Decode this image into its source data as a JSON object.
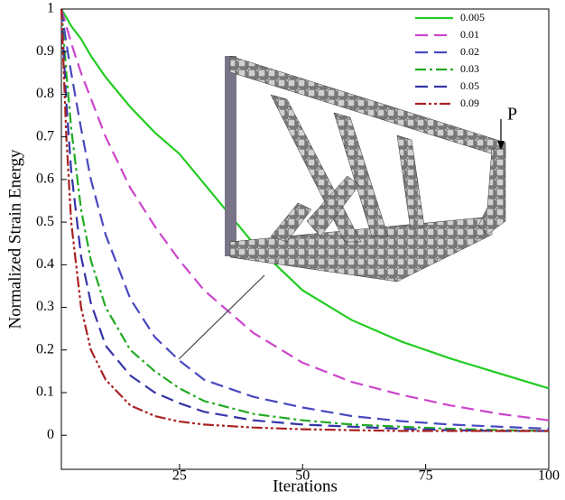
{
  "chart_data": {
    "type": "line",
    "x_label": "Iterations",
    "y_label": "Normalized Strain Energy",
    "annotation": "P",
    "xlim": [
      1,
      100
    ],
    "ylim": [
      -0.08,
      1
    ],
    "xticks": [
      25,
      50,
      75,
      100
    ],
    "yticks": [
      0,
      0.1,
      0.2,
      0.3,
      0.4,
      0.5,
      0.6,
      0.7,
      0.8,
      0.9,
      1
    ],
    "legend": "top-right",
    "x": [
      1,
      2,
      3,
      5,
      7,
      10,
      15,
      20,
      25,
      30,
      40,
      50,
      60,
      70,
      80,
      90,
      100
    ],
    "series": [
      {
        "name": "0.005",
        "color": "#22cc22",
        "dash": "solid",
        "values": [
          1,
          0.98,
          0.96,
          0.93,
          0.89,
          0.84,
          0.77,
          0.71,
          0.66,
          0.59,
          0.45,
          0.34,
          0.27,
          0.22,
          0.18,
          0.145,
          0.11
        ]
      },
      {
        "name": "0.01",
        "color": "#cc44cc",
        "dash": "dashed",
        "values": [
          1,
          0.96,
          0.92,
          0.85,
          0.79,
          0.7,
          0.58,
          0.49,
          0.41,
          0.34,
          0.24,
          0.17,
          0.125,
          0.095,
          0.07,
          0.05,
          0.035
        ]
      },
      {
        "name": "0.02",
        "color": "#4848c0",
        "dash": "dashed",
        "values": [
          1,
          0.92,
          0.85,
          0.72,
          0.6,
          0.47,
          0.32,
          0.23,
          0.175,
          0.13,
          0.09,
          0.065,
          0.045,
          0.033,
          0.025,
          0.02,
          0.015
        ]
      },
      {
        "name": "0.03",
        "color": "#22aa22",
        "dash": "dashdot",
        "values": [
          1,
          0.85,
          0.72,
          0.53,
          0.41,
          0.3,
          0.2,
          0.15,
          0.11,
          0.08,
          0.05,
          0.035,
          0.025,
          0.02,
          0.015,
          0.012,
          0.01
        ]
      },
      {
        "name": "0.05",
        "color": "#3434a8",
        "dash": "dashed",
        "values": [
          1,
          0.78,
          0.62,
          0.42,
          0.31,
          0.21,
          0.14,
          0.1,
          0.075,
          0.055,
          0.035,
          0.025,
          0.02,
          0.015,
          0.012,
          0.01,
          0.01
        ]
      },
      {
        "name": "0.09",
        "color": "#aa2222",
        "dash": "dashdotdot",
        "values": [
          1,
          0.7,
          0.5,
          0.3,
          0.2,
          0.13,
          0.07,
          0.045,
          0.032,
          0.025,
          0.018,
          0.014,
          0.012,
          0.01,
          0.01,
          0.01,
          0.01
        ]
      }
    ]
  }
}
